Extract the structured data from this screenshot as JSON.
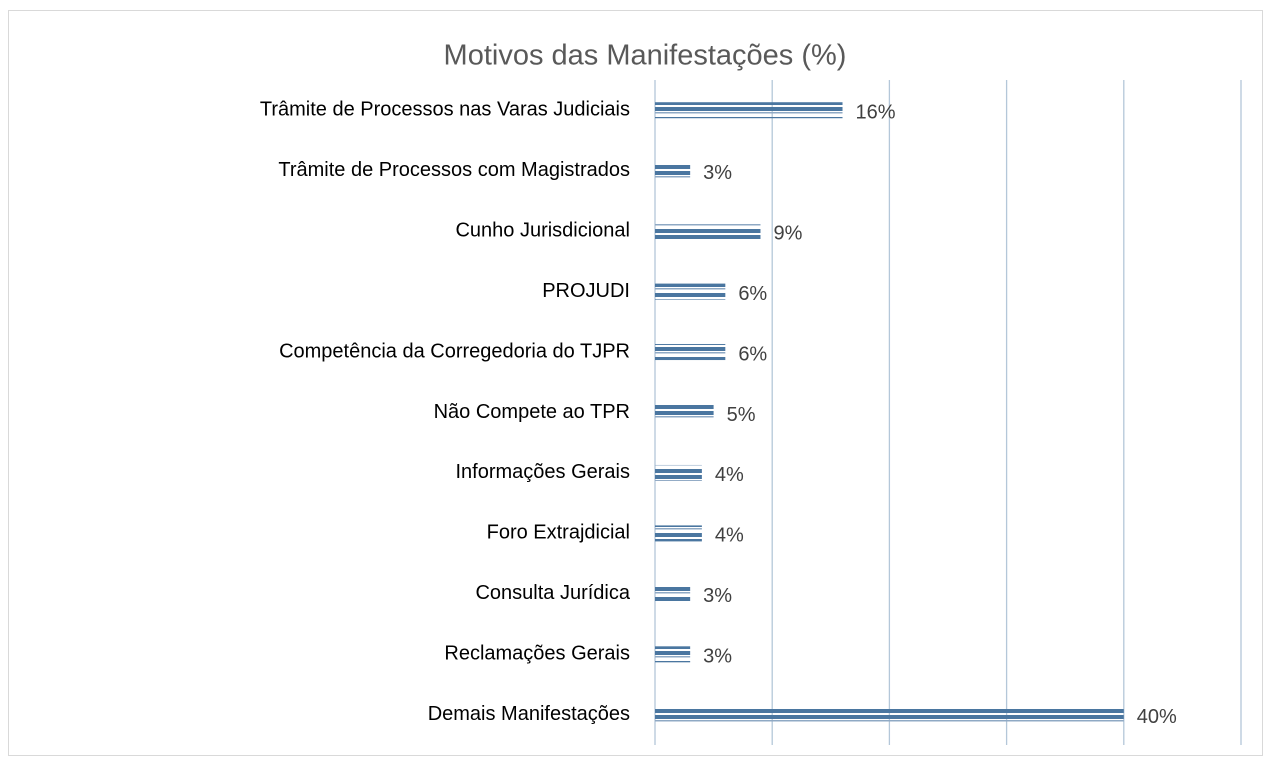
{
  "chart_data": {
    "type": "bar",
    "orientation": "horizontal",
    "title": "Motivos das Manifestações (%)",
    "categories": [
      "Trâmite de Processos nas Varas Judiciais",
      "Trâmite de Processos com Magistrados",
      "Cunho Jurisdicional",
      "PROJUDI",
      "Competência da Corregedoria do TJPR",
      "Não Compete ao TPR",
      "Informações Gerais",
      "Foro Extrajdicial",
      "Consulta Jurídica",
      "Reclamações Gerais",
      "Demais Manifestações"
    ],
    "values": [
      16,
      3,
      9,
      6,
      6,
      5,
      4,
      4,
      3,
      3,
      40
    ],
    "value_labels": [
      "16%",
      "3%",
      "9%",
      "6%",
      "6%",
      "5%",
      "4%",
      "4%",
      "3%",
      "3%",
      "40%"
    ],
    "color": "#4a76a0",
    "xlim": [
      0,
      50
    ],
    "xticks": [
      0,
      10,
      20,
      30,
      40,
      50
    ],
    "grid": true
  }
}
